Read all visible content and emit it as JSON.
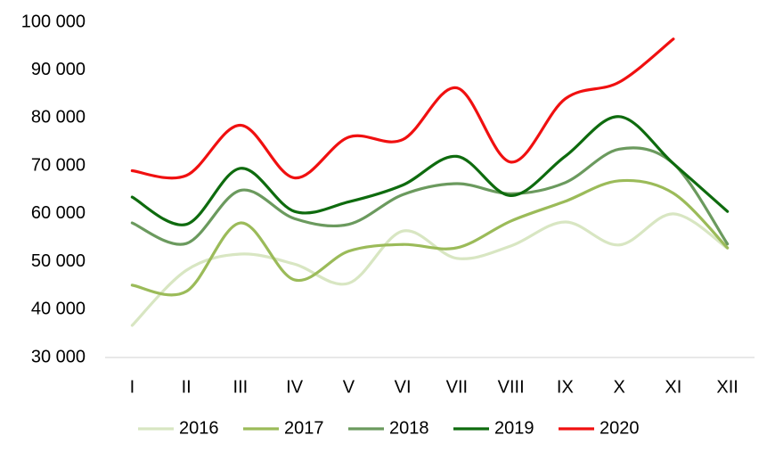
{
  "chart_data": {
    "type": "line",
    "categories": [
      "I",
      "II",
      "III",
      "IV",
      "V",
      "VI",
      "VII",
      "VIII",
      "IX",
      "X",
      "XI",
      "XII"
    ],
    "series": [
      {
        "name": "2016",
        "color": "#d8e6c2",
        "values": [
          36700,
          48200,
          51600,
          49500,
          45500,
          56400,
          50700,
          53300,
          58300,
          53500,
          60000,
          52800
        ]
      },
      {
        "name": "2017",
        "color": "#9bbb59",
        "values": [
          45100,
          43800,
          58100,
          46200,
          52200,
          53600,
          52900,
          58500,
          62600,
          66900,
          64300,
          52900
        ]
      },
      {
        "name": "2018",
        "color": "#6b9a5e",
        "values": [
          58100,
          53800,
          64900,
          59000,
          57800,
          64000,
          66300,
          64200,
          66500,
          73500,
          70500,
          53700
        ]
      },
      {
        "name": "2019",
        "color": "#0e6b0e",
        "values": [
          63500,
          57800,
          69500,
          60500,
          62500,
          66000,
          72000,
          63800,
          72000,
          80300,
          70500,
          60500
        ]
      },
      {
        "name": "2020",
        "color": "#f01010",
        "values": [
          69000,
          68000,
          78500,
          67500,
          76000,
          75500,
          86300,
          70800,
          84000,
          87500,
          96500,
          null
        ]
      }
    ],
    "ylim": [
      30000,
      100000
    ],
    "yticks": [
      {
        "value": 30000,
        "label": "30 000"
      },
      {
        "value": 40000,
        "label": "40 000"
      },
      {
        "value": 50000,
        "label": "50 000"
      },
      {
        "value": 60000,
        "label": "60 000"
      },
      {
        "value": 70000,
        "label": "70 000"
      },
      {
        "value": 80000,
        "label": "80 000"
      },
      {
        "value": 90000,
        "label": "90 000"
      },
      {
        "value": 100000,
        "label": "100 000"
      }
    ],
    "grid": false,
    "legend": "bottom"
  }
}
